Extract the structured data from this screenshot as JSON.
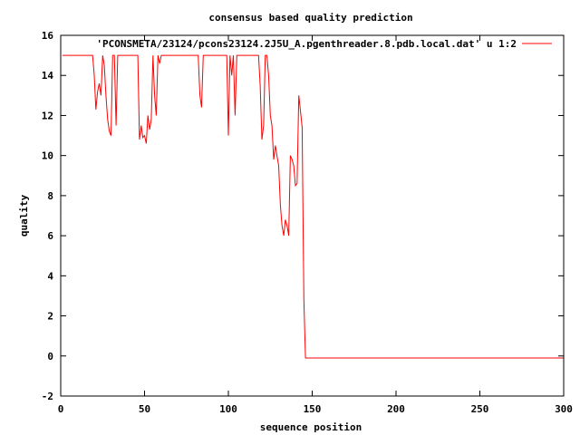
{
  "chart_data": {
    "type": "line",
    "title": "consensus based quality prediction",
    "xlabel": "sequence position",
    "ylabel": "quality",
    "xlim": [
      0,
      300
    ],
    "ylim": [
      -2,
      16
    ],
    "xticks": [
      0,
      50,
      100,
      150,
      200,
      250,
      300
    ],
    "yticks": [
      -2,
      0,
      2,
      4,
      6,
      8,
      10,
      12,
      14,
      16
    ],
    "grid": false,
    "legend_position": "top-right",
    "series": [
      {
        "name": "'PCONSMETA/23124/pcons23124.2J5U_A.pgenthreader.8.pdb.local.dat' u 1:2",
        "color": "#ff0000",
        "x": [
          1,
          19,
          20,
          21,
          22,
          23,
          24,
          25,
          26,
          27,
          28,
          29,
          30,
          31,
          32,
          33,
          34,
          35,
          36,
          37,
          46,
          47,
          48,
          49,
          50,
          51,
          52,
          53,
          54,
          55,
          56,
          57,
          58,
          59,
          60,
          61,
          82,
          83,
          84,
          85,
          90,
          91,
          99,
          100,
          101,
          102,
          103,
          104,
          105,
          106,
          107,
          108,
          118,
          119,
          120,
          121,
          122,
          123,
          124,
          125,
          126,
          127,
          128,
          129,
          130,
          131,
          132,
          133,
          134,
          135,
          136,
          137,
          138,
          139,
          140,
          141,
          142,
          143,
          144,
          145,
          146,
          147,
          300
        ],
        "y": [
          15,
          15,
          14.0,
          12.3,
          13.2,
          13.6,
          13.0,
          15,
          14.5,
          13.0,
          11.8,
          11.2,
          11.0,
          15,
          15,
          11.5,
          15,
          15,
          15,
          15,
          15,
          10.8,
          11.5,
          10.9,
          11.0,
          10.6,
          12.0,
          11.3,
          11.8,
          15,
          13.0,
          12.0,
          15,
          14.6,
          15,
          15,
          15,
          13.0,
          12.4,
          15,
          15,
          15,
          15,
          11.0,
          15,
          14.0,
          15,
          12.0,
          15,
          15,
          15,
          15,
          15,
          13.5,
          10.8,
          11.5,
          15,
          15,
          14.0,
          12.0,
          11.5,
          9.8,
          10.5,
          10.0,
          9.5,
          7.5,
          6.5,
          6.0,
          6.8,
          6.5,
          6.0,
          10.0,
          9.8,
          9.5,
          8.5,
          8.6,
          13.0,
          12.2,
          11.4,
          2.8,
          -0.1,
          -0.1,
          -0.1
        ]
      }
    ]
  }
}
